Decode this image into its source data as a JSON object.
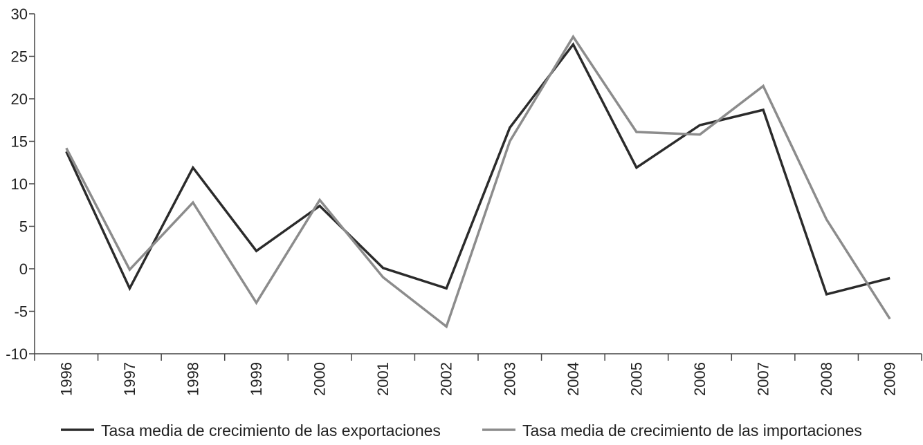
{
  "chart_data": {
    "type": "line",
    "title": "",
    "xlabel": "",
    "ylabel": "",
    "categories": [
      "1996",
      "1997",
      "1998",
      "1999",
      "2000",
      "2001",
      "2002",
      "2003",
      "2004",
      "2005",
      "2006",
      "2007",
      "2008",
      "2009"
    ],
    "ylim": [
      -10,
      30
    ],
    "yticks": [
      "30",
      "25",
      "20",
      "15",
      "10",
      "5",
      "0",
      "-5",
      "-10"
    ],
    "grid": false,
    "legend_position": "bottom",
    "series": [
      {
        "name": "Tasa media de crecimiento de las exportaciones",
        "color": "#2b2b2b",
        "values": [
          13.8,
          -2.3,
          11.9,
          2.1,
          7.4,
          0.1,
          -2.3,
          16.6,
          26.4,
          11.9,
          16.9,
          18.7,
          -3.0,
          -1.1
        ]
      },
      {
        "name": "Tasa media de crecimiento de las importaciones",
        "color": "#8c8c8c",
        "values": [
          14.2,
          -0.1,
          7.8,
          -4.0,
          8.1,
          -1.0,
          -6.8,
          15.0,
          27.3,
          16.1,
          15.8,
          21.5,
          5.8,
          -5.9
        ]
      }
    ]
  }
}
